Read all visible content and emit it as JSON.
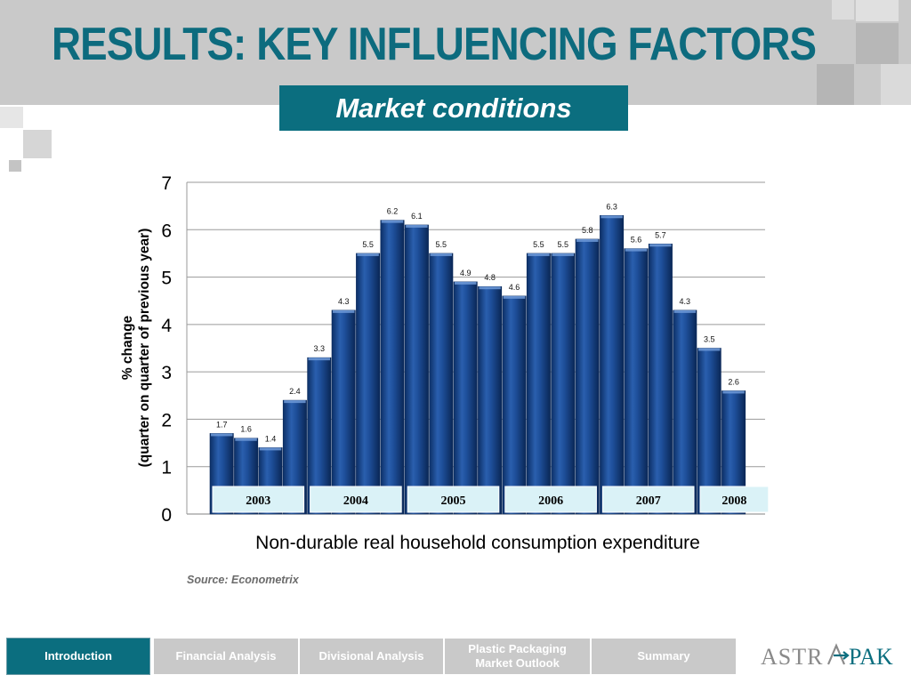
{
  "header": {
    "title": "RESULTS: KEY INFLUENCING FACTORS",
    "subtitle": "Market conditions"
  },
  "chart_data": {
    "type": "bar",
    "title": "",
    "xlabel": "Non-durable real household consumption expenditure",
    "ylabel_line1": "% change",
    "ylabel_line2": "(quarter on quarter of previous year)",
    "ylim": [
      0,
      7
    ],
    "yticks": [
      0,
      1,
      2,
      3,
      4,
      5,
      6,
      7
    ],
    "grid": true,
    "values": [
      1.7,
      1.6,
      1.4,
      2.4,
      3.3,
      4.3,
      5.5,
      6.2,
      6.1,
      5.5,
      4.9,
      4.8,
      4.6,
      5.5,
      5.5,
      5.8,
      6.3,
      5.6,
      5.7,
      4.3,
      3.5,
      2.6
    ],
    "year_groups": [
      {
        "label": "2003",
        "bars": 4
      },
      {
        "label": "2004",
        "bars": 4
      },
      {
        "label": "2005",
        "bars": 4
      },
      {
        "label": "2006",
        "bars": 4
      },
      {
        "label": "2007",
        "bars": 4
      },
      {
        "label": "2008",
        "bars": 2
      }
    ],
    "bar_color": "#1f4f9c"
  },
  "source": "Source: Econometrix",
  "footer": {
    "tabs": [
      {
        "label": "Introduction",
        "active": true
      },
      {
        "label": "Financial Analysis",
        "active": false
      },
      {
        "label": "Divisional Analysis",
        "active": false
      },
      {
        "label": "Plastic Packaging Market Outlook",
        "active": false
      },
      {
        "label": "Summary",
        "active": false
      }
    ],
    "logo_a": "ASTR",
    "logo_b": "PAK"
  },
  "colors": {
    "accent": "#0b6e7f",
    "header_band": "#c9c9c9",
    "year_label_bg": "#daf2f7"
  }
}
